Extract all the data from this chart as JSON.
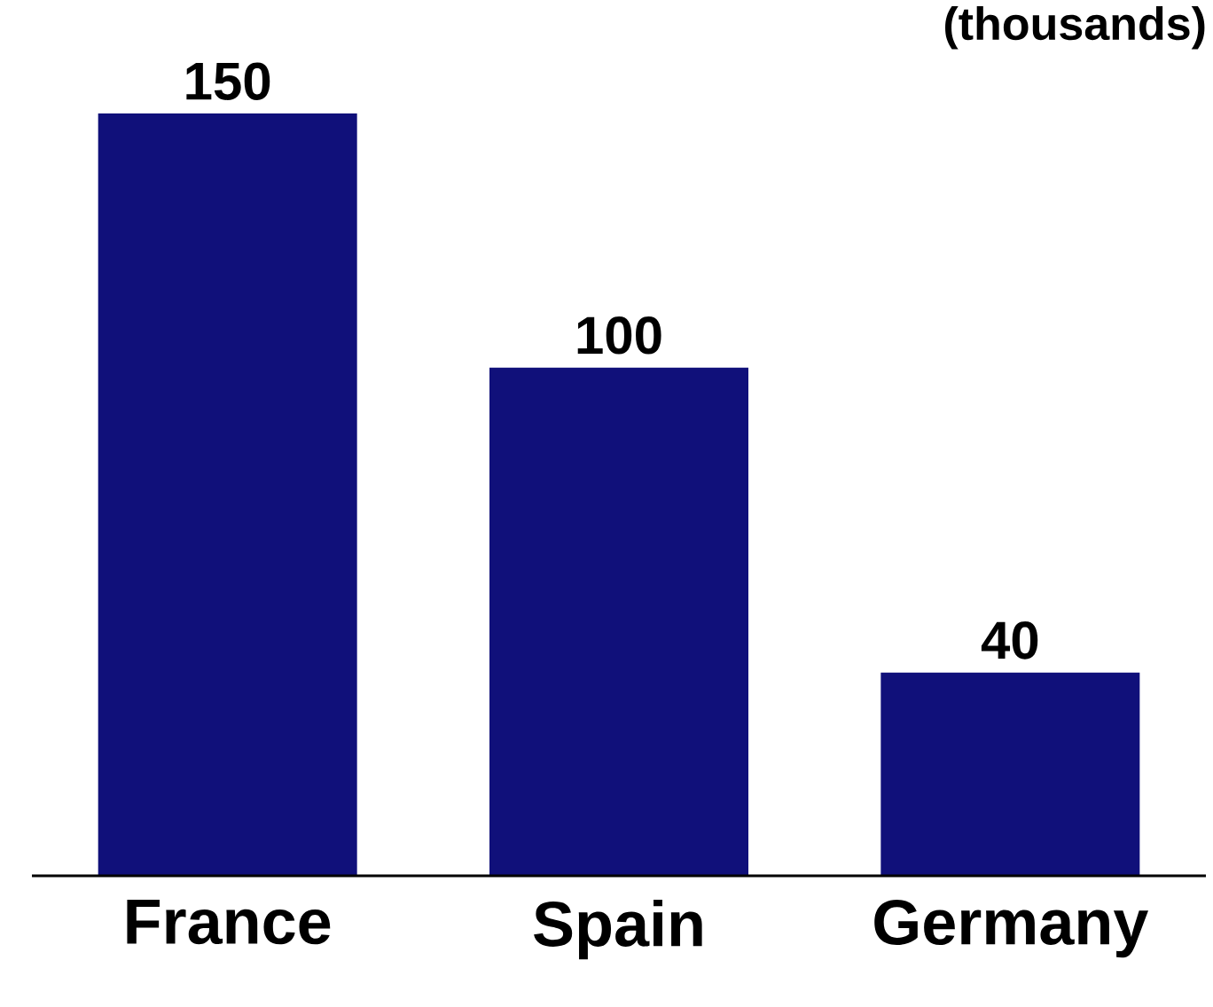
{
  "chart_data": {
    "type": "bar",
    "subtitle": "(thousands)",
    "categories": [
      "France",
      "Spain",
      "Germany"
    ],
    "values": [
      150,
      100,
      40
    ],
    "color": "#10107a",
    "data_labels": true
  }
}
